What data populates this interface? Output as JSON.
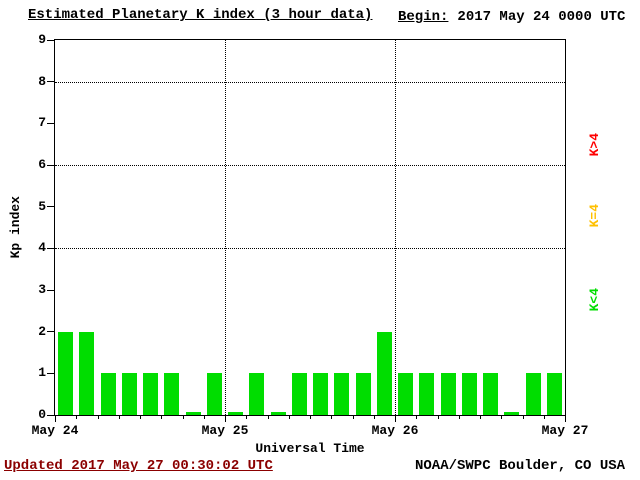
{
  "header": {
    "title": "Estimated Planetary K index (3 hour data)",
    "begin_label": "Begin:",
    "begin_value": "2017 May 24 0000 UTC"
  },
  "footer": {
    "updated": "Updated 2017 May 27 00:30:02 UTC",
    "source": "NOAA/SWPC Boulder, CO USA"
  },
  "legend": {
    "items": [
      {
        "label": "K>4",
        "color": "#ff0000"
      },
      {
        "label": "K=4",
        "color": "#ffc000"
      },
      {
        "label": "K<4",
        "color": "#00dd00"
      }
    ]
  },
  "chart_data": {
    "type": "bar",
    "title": "Estimated Planetary K index (3 hour data)",
    "xlabel": "Universal Time",
    "ylabel": "Kp index",
    "ylim": [
      0,
      9
    ],
    "yticks": [
      0,
      1,
      2,
      3,
      4,
      5,
      6,
      7,
      8,
      9
    ],
    "x_tick_labels": [
      "May 24",
      "May 25",
      "May 26",
      "May 27"
    ],
    "interval_hours": 3,
    "begin_utc": "2017 May 24 0000 UTC",
    "bar_color": "#00dd00",
    "grid_h": [
      4,
      6,
      8
    ],
    "grid_v_days": [
      1,
      2
    ],
    "values": [
      2,
      2,
      1,
      1,
      1,
      1,
      0,
      1,
      0,
      1,
      0,
      1,
      1,
      1,
      1,
      2,
      1,
      1,
      1,
      1,
      1,
      0,
      1,
      1
    ]
  }
}
